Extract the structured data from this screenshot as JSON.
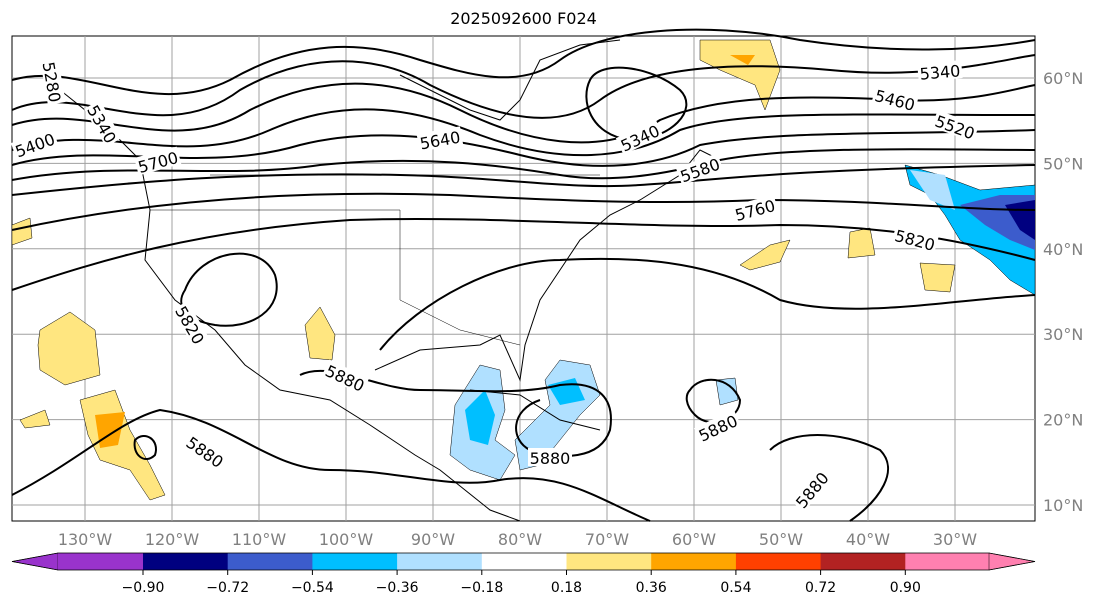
{
  "title": "2025092600 F024",
  "lon_labels": [
    "130°W",
    "120°W",
    "110°W",
    "100°W",
    "90°W",
    "80°W",
    "70°W",
    "60°W",
    "50°W",
    "40°W",
    "30°W"
  ],
  "lat_labels": [
    "60°N",
    "50°N",
    "40°N",
    "30°N",
    "20°N",
    "10°N"
  ],
  "contour_labels": [
    "5280",
    "5340",
    "5400",
    "5700",
    "5640",
    "5340",
    "5580",
    "5760",
    "5340",
    "5460",
    "5520",
    "5820",
    "5820",
    "5880",
    "5880",
    "5880",
    "5880",
    "5880"
  ],
  "colorbar": {
    "ticks": [
      "−0.90",
      "−0.72",
      "−0.54",
      "−0.36",
      "−0.18",
      "0.18",
      "0.36",
      "0.54",
      "0.72",
      "0.90"
    ],
    "colors": [
      "#9933cc",
      "#000080",
      "#3c5ccc",
      "#00bfff",
      "#b0e0ff",
      "#ffffff",
      "#ffe680",
      "#ffa500",
      "#ff4000",
      "#b22222",
      "#ff80b0"
    ]
  }
}
